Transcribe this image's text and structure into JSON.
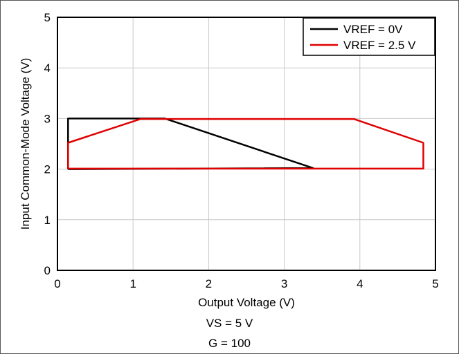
{
  "chart_data": {
    "type": "line",
    "xlabel": "Output Voltage (V)",
    "ylabel": "Input Common-Mode Voltage (V)",
    "xlim": [
      0,
      5
    ],
    "ylim": [
      0,
      5
    ],
    "xticks": [
      0,
      1,
      2,
      3,
      4,
      5
    ],
    "yticks": [
      0,
      1,
      2,
      3,
      4,
      5
    ],
    "grid": true,
    "legend_position": "top-right",
    "series": [
      {
        "name": "VREF = 0V",
        "color": "#000000",
        "x": [
          0.14,
          0.14,
          1.42,
          3.38,
          0.14
        ],
        "y": [
          2.0,
          3.0,
          3.0,
          2.02,
          2.0
        ]
      },
      {
        "name": "VREF = 2.5 V",
        "color": "#e00000",
        "x": [
          0.14,
          0.14,
          1.1,
          3.92,
          4.84,
          4.84,
          0.14
        ],
        "y": [
          2.01,
          2.52,
          2.99,
          2.99,
          2.52,
          2.01,
          2.01
        ]
      }
    ]
  },
  "captions": {
    "supply": "VS = 5 V",
    "gain": "G = 100"
  }
}
